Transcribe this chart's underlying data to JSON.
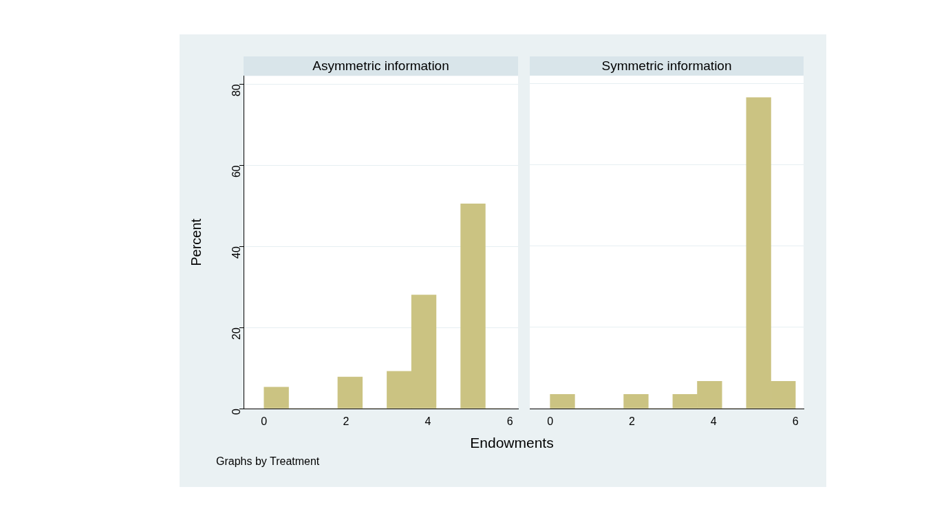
{
  "chart_data": [
    {
      "type": "histogram",
      "title": "Asymmetric information",
      "xlabel": "Endowments",
      "ylabel": "Percent",
      "annotations": [
        "Graphs by Treatment"
      ],
      "bins": [
        0,
        0.6,
        1.2,
        1.8,
        2.4,
        3.0,
        3.6,
        4.2,
        4.8,
        5.4,
        6.0
      ],
      "values": [
        5.3,
        0,
        0,
        7.8,
        0,
        9.2,
        28,
        0,
        50.5,
        0
      ],
      "color": "#cbc382",
      "xlim": [
        -0.5,
        6.2
      ],
      "xticks": [
        0,
        2,
        4,
        6
      ],
      "ylim": [
        0,
        82
      ],
      "yticks": [
        0,
        20,
        40,
        60,
        80
      ],
      "grid": "y"
    },
    {
      "type": "histogram",
      "title": "Symmetric information",
      "bins": [
        0,
        0.6,
        1.2,
        1.8,
        2.4,
        3.0,
        3.6,
        4.2,
        4.8,
        5.4,
        6.0
      ],
      "values": [
        3.5,
        0,
        0,
        3.5,
        0,
        3.5,
        6.7,
        0,
        76.6,
        6.7
      ],
      "color": "#cbc382",
      "xlim": [
        -0.5,
        6.2
      ],
      "xticks": [
        0,
        2,
        4,
        6
      ],
      "ylim": [
        0,
        82
      ],
      "yticks": [
        0,
        20,
        40,
        60,
        80
      ],
      "grid": "y",
      "tick_labels": "x"
    }
  ]
}
